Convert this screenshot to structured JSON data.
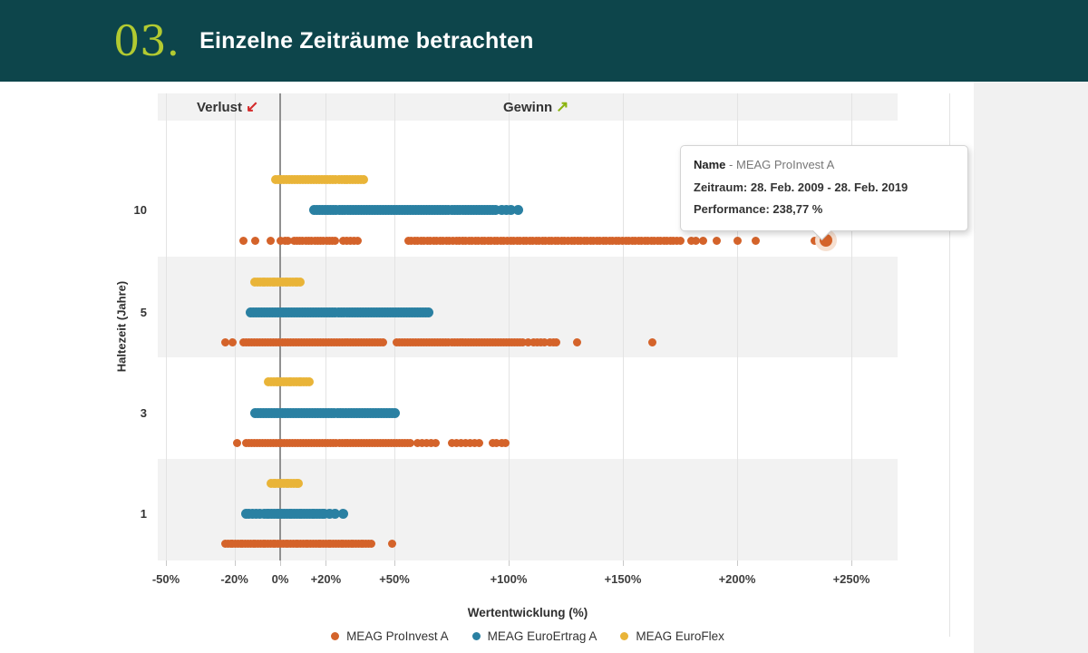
{
  "header": {
    "number": "03.",
    "title": "Einzelne Zeiträume betrachten"
  },
  "annotations": {
    "loss_label": "Verlust",
    "loss_arrow": "↙",
    "gain_label": "Gewinn",
    "gain_arrow": "↗"
  },
  "axes": {
    "x_title": "Wertentwicklung (%)",
    "y_title": "Haltezeit (Jahre)"
  },
  "tooltip": {
    "row1_label": "Name",
    "row1_sep": " - ",
    "row1_value": "MEAG ProInvest A",
    "row2": "Zeitraum: 28. Feb. 2009 - 28. Feb. 2019",
    "row3": "Performance: 238,77 %"
  },
  "colors": {
    "header_bg": "#0d454b",
    "header_number": "#b2ca31",
    "band_gray": "#f2f2f2",
    "grid": "#e3e3e3",
    "zero_line": "#909090",
    "loss_arrow": "#d42a2a",
    "gain_arrow": "#8cb410",
    "right_panel": "#f1f1f1",
    "halo": "#f6e0d1",
    "proinvest": "#d4632a",
    "euroertrag": "#2a80a2",
    "euroflex": "#e9b438"
  },
  "chart_data": {
    "type": "scatter",
    "title": "",
    "xlabel": "Wertentwicklung (%)",
    "ylabel": "Haltezeit (Jahre)",
    "xlim": [
      -54,
      270
    ],
    "grid": true,
    "legend_position": "bottom",
    "groups": [
      {
        "id": "10",
        "label": "10"
      },
      {
        "id": "5",
        "label": "5"
      },
      {
        "id": "3",
        "label": "3"
      },
      {
        "id": "1",
        "label": "1"
      }
    ],
    "x_ticks": [
      {
        "value": -50,
        "label": "-50%"
      },
      {
        "value": -20,
        "label": "-20%"
      },
      {
        "value": 0,
        "label": "0%"
      },
      {
        "value": 20,
        "label": "+20%"
      },
      {
        "value": 50,
        "label": "+50%"
      },
      {
        "value": 100,
        "label": "+100%"
      },
      {
        "value": 150,
        "label": "+150%"
      },
      {
        "value": 200,
        "label": "+200%"
      },
      {
        "value": 250,
        "label": "+250%"
      }
    ],
    "series": [
      {
        "name": "MEAG ProInvest A",
        "color": "#d4632a",
        "data": {
          "10": {
            "ranges": [
              [
                6,
                25,
                1.3
              ],
              [
                27.5,
                34,
                1.6
              ],
              [
                56,
                176,
                1.4
              ]
            ],
            "singles": [
              -16,
              -11,
              -4,
              0,
              2,
              3.5,
              180,
              182,
              185,
              191,
              200,
              208,
              234,
              238.77
            ]
          },
          "5": {
            "ranges": [
              [
                -16,
                46,
                1.2
              ],
              [
                51,
                107,
                1.2
              ]
            ],
            "singles": [
              -24,
              -21,
              108.5,
              111,
              112.5,
              114,
              115.5,
              118,
              119.5,
              121,
              130,
              163
            ]
          },
          "3": {
            "ranges": [
              [
                -15,
                57,
                1.2
              ]
            ],
            "singles": [
              -19,
              60,
              62,
              64,
              66,
              68,
              75,
              77,
              79,
              81,
              83,
              85,
              87,
              93,
              94.5,
              97,
              98.5
            ]
          },
          "1": {
            "ranges": [
              [
                -24,
                40,
                1.1
              ]
            ],
            "singles": [
              49
            ]
          }
        }
      },
      {
        "name": "MEAG EuroErtrag A",
        "color": "#2a80a2",
        "data": {
          "10": {
            "ranges": [
              [
                15,
                95,
                1.2
              ]
            ],
            "singles": [
              97,
              99,
              101,
              104
            ]
          },
          "5": {
            "ranges": [
              [
                -13,
                65,
                1.2
              ]
            ],
            "singles": []
          },
          "3": {
            "ranges": [
              [
                -11,
                51,
                1.2
              ]
            ],
            "singles": []
          },
          "1": {
            "ranges": [
              [
                -7,
                20,
                1.1
              ]
            ],
            "singles": [
              -15,
              -13.5,
              -12,
              -10.5,
              -9,
              21.5,
              24,
              27.5
            ]
          }
        }
      },
      {
        "name": "MEAG EuroFlex",
        "color": "#e9b438",
        "data": {
          "10": {
            "ranges": [
              [
                -2,
                37,
                1.2
              ]
            ],
            "singles": []
          },
          "5": {
            "ranges": [
              [
                -11,
                9,
                1.1
              ]
            ],
            "singles": []
          },
          "3": {
            "ranges": [
              [
                -5,
                13,
                1.1
              ]
            ],
            "singles": []
          },
          "1": {
            "ranges": [
              [
                -4,
                9,
                1.1
              ]
            ],
            "singles": []
          }
        }
      }
    ],
    "highlight": {
      "series": "MEAG ProInvest A",
      "group": "10",
      "value": 238.77
    }
  }
}
